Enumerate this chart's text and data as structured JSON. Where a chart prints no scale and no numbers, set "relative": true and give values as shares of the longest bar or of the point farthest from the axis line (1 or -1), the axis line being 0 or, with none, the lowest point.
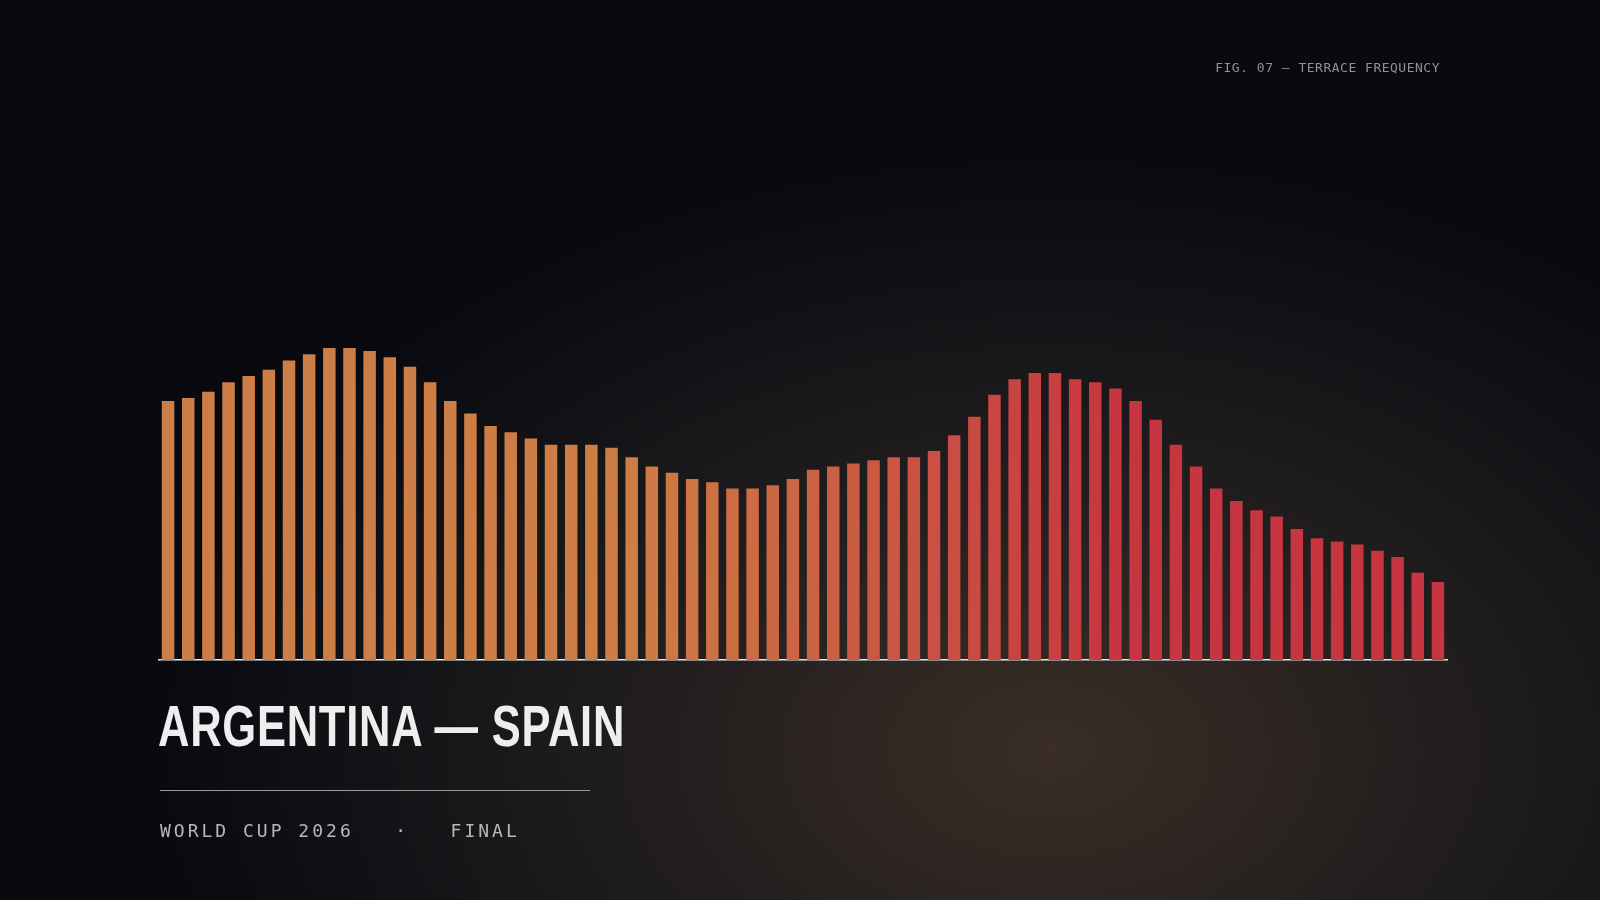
{
  "chart_data": {
    "type": "bar",
    "relative": true,
    "title": "ARGENTINA — SPAIN",
    "subtitle": "WORLD CUP 2026   ·   FINAL",
    "annotations": [
      "FIG. 07 — TERRACE FREQUENCY"
    ],
    "categories": [
      null,
      null,
      null,
      null,
      null,
      null,
      null,
      null,
      null,
      null,
      null,
      null,
      null,
      null,
      null,
      null,
      null,
      null,
      null,
      null,
      null,
      null,
      null,
      null,
      null,
      null,
      null,
      null,
      null,
      null,
      null,
      null,
      null,
      null,
      null,
      null,
      null,
      null,
      null,
      null,
      null,
      null,
      null,
      null,
      null,
      null,
      null,
      null,
      null,
      null,
      null,
      null,
      null,
      null,
      null,
      null,
      null,
      null,
      null,
      null,
      null,
      null,
      null,
      null
    ],
    "values": [
      0.83,
      0.84,
      0.86,
      0.89,
      0.91,
      0.93,
      0.96,
      0.98,
      1.0,
      1.0,
      0.99,
      0.97,
      0.94,
      0.89,
      0.83,
      0.79,
      0.75,
      0.73,
      0.71,
      0.69,
      0.69,
      0.69,
      0.68,
      0.65,
      0.62,
      0.6,
      0.58,
      0.57,
      0.55,
      0.55,
      0.56,
      0.58,
      0.61,
      0.62,
      0.63,
      0.64,
      0.65,
      0.65,
      0.67,
      0.72,
      0.78,
      0.85,
      0.9,
      0.92,
      0.92,
      0.9,
      0.89,
      0.87,
      0.83,
      0.77,
      0.69,
      0.62,
      0.55,
      0.51,
      0.48,
      0.46,
      0.42,
      0.39,
      0.38,
      0.37,
      0.35,
      0.33,
      0.28,
      0.25
    ],
    "colors": [
      "#cd7e47",
      "#cd7e47",
      "#cd7e47",
      "#cd7e47",
      "#cd7e47",
      "#cd7e47",
      "#cd7e47",
      "#cd7e47",
      "#cd7e47",
      "#cd7e47",
      "#cd7e47",
      "#cd7e47",
      "#cd7e47",
      "#cd7e47",
      "#cd7e47",
      "#cd7e47",
      "#cd7e47",
      "#cd7e47",
      "#cd7e47",
      "#cd7e47",
      "#cd7e47",
      "#cd7e47",
      "#cd7e47",
      "#cd7e47",
      "#cd7a47",
      "#cd7744",
      "#cc7444",
      "#cc7144",
      "#cc6e44",
      "#cc6b44",
      "#cb6844",
      "#cb6544",
      "#cb6244",
      "#ca5f43",
      "#ca5c43",
      "#ca5943",
      "#ca5643",
      "#c95342",
      "#c95042",
      "#c94d42",
      "#c94a42",
      "#c84742",
      "#c84441",
      "#c84141",
      "#c83e41",
      "#c83b40",
      "#c73840",
      "#c73540",
      "#c73540",
      "#c73540",
      "#c73540",
      "#c73540",
      "#c73540",
      "#c73540",
      "#c73540",
      "#c73540",
      "#c73540",
      "#c73540",
      "#c73540",
      "#c73540",
      "#c73540",
      "#c73540",
      "#c73540",
      "#c73540"
    ]
  }
}
